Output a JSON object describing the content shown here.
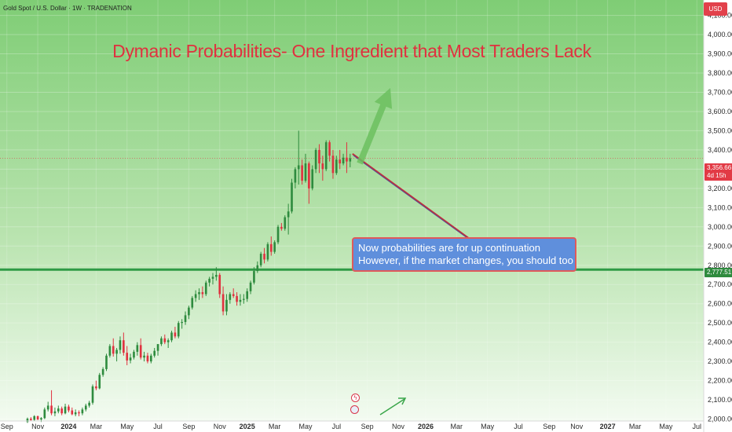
{
  "header": {
    "symbol_line": "Gold Spot / U.S. Dollar · 1W · TRADENATION",
    "currency": "USD"
  },
  "annotations": {
    "title": "Dymanic Probabilities- One Ingredient that Most Traders Lack",
    "callout_line1": "Now probabilities are for up continuation",
    "callout_line2": "However, if the market changes, you should too",
    "price_tag_value": "3,356.66",
    "price_tag_countdown": "4d 15h",
    "level_tag_value": "2,777.51"
  },
  "colors": {
    "up": "#2e8b3e",
    "down": "#e0313f",
    "arrow": "#6cbf5f",
    "diag": "#c0303a",
    "level_line": "#2e9a45",
    "callout_bg": "#5f8fdc",
    "title": "#e0313f"
  },
  "icons": [
    "flash-icon",
    "us-flag-icon",
    "green-arrow-icon"
  ],
  "chart_data": {
    "type": "candlestick",
    "title": "Dymanic Probabilities- One Ingredient that Most Traders Lack",
    "ylim": [
      1990,
      4180
    ],
    "y_ticks": [
      2000,
      2100,
      2200,
      2300,
      2400,
      2500,
      2600,
      2700,
      2800,
      2900,
      3000,
      3100,
      3200,
      3300,
      3400,
      3500,
      3600,
      3700,
      3800,
      3900,
      4000,
      4100
    ],
    "y_tick_labels": [
      "2,000.00",
      "2,100.00",
      "2,200.00",
      "2,300.00",
      "2,400.00",
      "2,500.00",
      "2,600.00",
      "2,700.00",
      "2,800.00",
      "2,900.00",
      "3,000.00",
      "3,100.00",
      "3,200.00",
      "3,300.00",
      "3,400.00",
      "3,500.00",
      "3,600.00",
      "3,700.00",
      "3,800.00",
      "3,900.00",
      "4,000.00",
      "4,100.00"
    ],
    "x_ticks": [
      {
        "label": "Sep",
        "week": 0,
        "year": false
      },
      {
        "label": "Nov",
        "week": 9,
        "year": false
      },
      {
        "label": "2024",
        "week": 18,
        "year": true
      },
      {
        "label": "Mar",
        "week": 26,
        "year": false
      },
      {
        "label": "May",
        "week": 35,
        "year": false
      },
      {
        "label": "Jul",
        "week": 44,
        "year": false
      },
      {
        "label": "Sep",
        "week": 53,
        "year": false
      },
      {
        "label": "Nov",
        "week": 62,
        "year": false
      },
      {
        "label": "2025",
        "week": 70,
        "year": true
      },
      {
        "label": "Mar",
        "week": 78,
        "year": false
      },
      {
        "label": "May",
        "week": 87,
        "year": false
      },
      {
        "label": "Jul",
        "week": 96,
        "year": false
      },
      {
        "label": "Sep",
        "week": 105,
        "year": false
      },
      {
        "label": "Nov",
        "week": 114,
        "year": false
      },
      {
        "label": "2026",
        "week": 122,
        "year": true
      },
      {
        "label": "Mar",
        "week": 131,
        "year": false
      },
      {
        "label": "May",
        "week": 140,
        "year": false
      },
      {
        "label": "Jul",
        "week": 149,
        "year": false
      },
      {
        "label": "Sep",
        "week": 158,
        "year": false
      },
      {
        "label": "Nov",
        "week": 166,
        "year": false
      },
      {
        "label": "2027",
        "week": 175,
        "year": true
      },
      {
        "label": "Mar",
        "week": 183,
        "year": false
      },
      {
        "label": "May",
        "week": 192,
        "year": false
      },
      {
        "label": "Jul",
        "week": 201,
        "year": false
      }
    ],
    "x_range_weeks": [
      -2,
      203
    ],
    "horizontal_level": 2777.51,
    "last_price": 3356.66,
    "candles": [
      {
        "w": 6,
        "o": 1985,
        "h": 2008,
        "l": 1980,
        "c": 2002
      },
      {
        "w": 7,
        "o": 2002,
        "h": 2010,
        "l": 1990,
        "c": 1995
      },
      {
        "w": 8,
        "o": 1996,
        "h": 2020,
        "l": 1992,
        "c": 2015
      },
      {
        "w": 9,
        "o": 2015,
        "h": 2018,
        "l": 1995,
        "c": 1998
      },
      {
        "w": 10,
        "o": 1998,
        "h": 2010,
        "l": 1985,
        "c": 2005
      },
      {
        "w": 11,
        "o": 2005,
        "h": 2060,
        "l": 2000,
        "c": 2050
      },
      {
        "w": 12,
        "o": 2050,
        "h": 2090,
        "l": 2040,
        "c": 2070
      },
      {
        "w": 13,
        "o": 2070,
        "h": 2150,
        "l": 2020,
        "c": 2030
      },
      {
        "w": 14,
        "o": 2030,
        "h": 2060,
        "l": 2015,
        "c": 2040
      },
      {
        "w": 15,
        "o": 2040,
        "h": 2070,
        "l": 2030,
        "c": 2055
      },
      {
        "w": 16,
        "o": 2055,
        "h": 2065,
        "l": 2020,
        "c": 2030
      },
      {
        "w": 17,
        "o": 2030,
        "h": 2080,
        "l": 2025,
        "c": 2065
      },
      {
        "w": 18,
        "o": 2065,
        "h": 2075,
        "l": 2035,
        "c": 2045
      },
      {
        "w": 19,
        "o": 2045,
        "h": 2060,
        "l": 2020,
        "c": 2025
      },
      {
        "w": 20,
        "o": 2025,
        "h": 2050,
        "l": 2015,
        "c": 2035
      },
      {
        "w": 21,
        "o": 2035,
        "h": 2045,
        "l": 2015,
        "c": 2030
      },
      {
        "w": 22,
        "o": 2030,
        "h": 2060,
        "l": 2020,
        "c": 2050
      },
      {
        "w": 23,
        "o": 2050,
        "h": 2080,
        "l": 2040,
        "c": 2070
      },
      {
        "w": 24,
        "o": 2070,
        "h": 2095,
        "l": 2060,
        "c": 2085
      },
      {
        "w": 25,
        "o": 2085,
        "h": 2180,
        "l": 2075,
        "c": 2170
      },
      {
        "w": 26,
        "o": 2170,
        "h": 2200,
        "l": 2150,
        "c": 2160
      },
      {
        "w": 27,
        "o": 2160,
        "h": 2240,
        "l": 2155,
        "c": 2230
      },
      {
        "w": 28,
        "o": 2230,
        "h": 2270,
        "l": 2220,
        "c": 2260
      },
      {
        "w": 29,
        "o": 2260,
        "h": 2340,
        "l": 2250,
        "c": 2330
      },
      {
        "w": 30,
        "o": 2330,
        "h": 2390,
        "l": 2320,
        "c": 2380
      },
      {
        "w": 31,
        "o": 2380,
        "h": 2420,
        "l": 2325,
        "c": 2340
      },
      {
        "w": 32,
        "o": 2340,
        "h": 2370,
        "l": 2300,
        "c": 2360
      },
      {
        "w": 33,
        "o": 2360,
        "h": 2430,
        "l": 2340,
        "c": 2410
      },
      {
        "w": 34,
        "o": 2410,
        "h": 2450,
        "l": 2330,
        "c": 2345
      },
      {
        "w": 35,
        "o": 2345,
        "h": 2380,
        "l": 2280,
        "c": 2305
      },
      {
        "w": 36,
        "o": 2305,
        "h": 2340,
        "l": 2290,
        "c": 2320
      },
      {
        "w": 37,
        "o": 2320,
        "h": 2360,
        "l": 2310,
        "c": 2350
      },
      {
        "w": 38,
        "o": 2350,
        "h": 2400,
        "l": 2330,
        "c": 2385
      },
      {
        "w": 39,
        "o": 2385,
        "h": 2420,
        "l": 2310,
        "c": 2320
      },
      {
        "w": 40,
        "o": 2320,
        "h": 2350,
        "l": 2300,
        "c": 2330
      },
      {
        "w": 41,
        "o": 2330,
        "h": 2345,
        "l": 2290,
        "c": 2300
      },
      {
        "w": 42,
        "o": 2300,
        "h": 2340,
        "l": 2290,
        "c": 2330
      },
      {
        "w": 43,
        "o": 2330,
        "h": 2370,
        "l": 2320,
        "c": 2355
      },
      {
        "w": 44,
        "o": 2355,
        "h": 2390,
        "l": 2330,
        "c": 2390
      },
      {
        "w": 45,
        "o": 2390,
        "h": 2430,
        "l": 2380,
        "c": 2420
      },
      {
        "w": 46,
        "o": 2420,
        "h": 2440,
        "l": 2390,
        "c": 2400
      },
      {
        "w": 47,
        "o": 2400,
        "h": 2420,
        "l": 2370,
        "c": 2410
      },
      {
        "w": 48,
        "o": 2410,
        "h": 2460,
        "l": 2400,
        "c": 2450
      },
      {
        "w": 49,
        "o": 2450,
        "h": 2480,
        "l": 2420,
        "c": 2430
      },
      {
        "w": 50,
        "o": 2430,
        "h": 2510,
        "l": 2420,
        "c": 2500
      },
      {
        "w": 51,
        "o": 2500,
        "h": 2520,
        "l": 2470,
        "c": 2505
      },
      {
        "w": 52,
        "o": 2505,
        "h": 2560,
        "l": 2490,
        "c": 2540
      },
      {
        "w": 53,
        "o": 2540,
        "h": 2590,
        "l": 2520,
        "c": 2580
      },
      {
        "w": 54,
        "o": 2580,
        "h": 2640,
        "l": 2570,
        "c": 2630
      },
      {
        "w": 55,
        "o": 2630,
        "h": 2670,
        "l": 2610,
        "c": 2650
      },
      {
        "w": 56,
        "o": 2650,
        "h": 2680,
        "l": 2620,
        "c": 2660
      },
      {
        "w": 57,
        "o": 2660,
        "h": 2690,
        "l": 2630,
        "c": 2650
      },
      {
        "w": 58,
        "o": 2650,
        "h": 2720,
        "l": 2640,
        "c": 2710
      },
      {
        "w": 59,
        "o": 2710,
        "h": 2740,
        "l": 2690,
        "c": 2730
      },
      {
        "w": 60,
        "o": 2730,
        "h": 2760,
        "l": 2700,
        "c": 2740
      },
      {
        "w": 61,
        "o": 2740,
        "h": 2790,
        "l": 2720,
        "c": 2750
      },
      {
        "w": 62,
        "o": 2750,
        "h": 2760,
        "l": 2630,
        "c": 2650
      },
      {
        "w": 63,
        "o": 2650,
        "h": 2690,
        "l": 2540,
        "c": 2560
      },
      {
        "w": 64,
        "o": 2560,
        "h": 2650,
        "l": 2540,
        "c": 2620
      },
      {
        "w": 65,
        "o": 2620,
        "h": 2660,
        "l": 2600,
        "c": 2650
      },
      {
        "w": 66,
        "o": 2650,
        "h": 2680,
        "l": 2630,
        "c": 2640
      },
      {
        "w": 67,
        "o": 2640,
        "h": 2660,
        "l": 2590,
        "c": 2610
      },
      {
        "w": 68,
        "o": 2610,
        "h": 2650,
        "l": 2590,
        "c": 2620
      },
      {
        "w": 69,
        "o": 2620,
        "h": 2650,
        "l": 2600,
        "c": 2625
      },
      {
        "w": 70,
        "o": 2625,
        "h": 2680,
        "l": 2610,
        "c": 2665
      },
      {
        "w": 71,
        "o": 2665,
        "h": 2720,
        "l": 2650,
        "c": 2710
      },
      {
        "w": 72,
        "o": 2710,
        "h": 2790,
        "l": 2700,
        "c": 2770
      },
      {
        "w": 73,
        "o": 2770,
        "h": 2820,
        "l": 2760,
        "c": 2800
      },
      {
        "w": 74,
        "o": 2800,
        "h": 2870,
        "l": 2790,
        "c": 2860
      },
      {
        "w": 75,
        "o": 2860,
        "h": 2890,
        "l": 2810,
        "c": 2830
      },
      {
        "w": 76,
        "o": 2830,
        "h": 2920,
        "l": 2820,
        "c": 2910
      },
      {
        "w": 77,
        "o": 2910,
        "h": 2950,
        "l": 2850,
        "c": 2870
      },
      {
        "w": 78,
        "o": 2870,
        "h": 2930,
        "l": 2860,
        "c": 2920
      },
      {
        "w": 79,
        "o": 2920,
        "h": 3010,
        "l": 2910,
        "c": 3000
      },
      {
        "w": 80,
        "o": 3000,
        "h": 3020,
        "l": 2980,
        "c": 2990
      },
      {
        "w": 81,
        "o": 2990,
        "h": 3060,
        "l": 2980,
        "c": 3050
      },
      {
        "w": 82,
        "o": 3050,
        "h": 3120,
        "l": 2960,
        "c": 3080
      },
      {
        "w": 83,
        "o": 3080,
        "h": 3250,
        "l": 3070,
        "c": 3230
      },
      {
        "w": 84,
        "o": 3230,
        "h": 3310,
        "l": 3200,
        "c": 3300
      },
      {
        "w": 85,
        "o": 3300,
        "h": 3500,
        "l": 3220,
        "c": 3320
      },
      {
        "w": 86,
        "o": 3320,
        "h": 3350,
        "l": 3220,
        "c": 3240
      },
      {
        "w": 87,
        "o": 3240,
        "h": 3380,
        "l": 3230,
        "c": 3330
      },
      {
        "w": 88,
        "o": 3330,
        "h": 3340,
        "l": 3120,
        "c": 3200
      },
      {
        "w": 89,
        "o": 3200,
        "h": 3320,
        "l": 3190,
        "c": 3300
      },
      {
        "w": 90,
        "o": 3300,
        "h": 3410,
        "l": 3280,
        "c": 3400
      },
      {
        "w": 91,
        "o": 3400,
        "h": 3430,
        "l": 3280,
        "c": 3330
      },
      {
        "w": 92,
        "o": 3330,
        "h": 3370,
        "l": 3240,
        "c": 3300
      },
      {
        "w": 93,
        "o": 3300,
        "h": 3450,
        "l": 3290,
        "c": 3440
      },
      {
        "w": 94,
        "o": 3440,
        "h": 3450,
        "l": 3340,
        "c": 3370
      },
      {
        "w": 95,
        "o": 3370,
        "h": 3400,
        "l": 3250,
        "c": 3280
      },
      {
        "w": 96,
        "o": 3280,
        "h": 3370,
        "l": 3270,
        "c": 3350
      },
      {
        "w": 97,
        "o": 3350,
        "h": 3400,
        "l": 3300,
        "c": 3330
      },
      {
        "w": 98,
        "o": 3330,
        "h": 3380,
        "l": 3320,
        "c": 3360
      },
      {
        "w": 99,
        "o": 3360,
        "h": 3440,
        "l": 3280,
        "c": 3340
      },
      {
        "w": 100,
        "o": 3340,
        "h": 3380,
        "l": 3310,
        "c": 3356.66
      }
    ]
  }
}
